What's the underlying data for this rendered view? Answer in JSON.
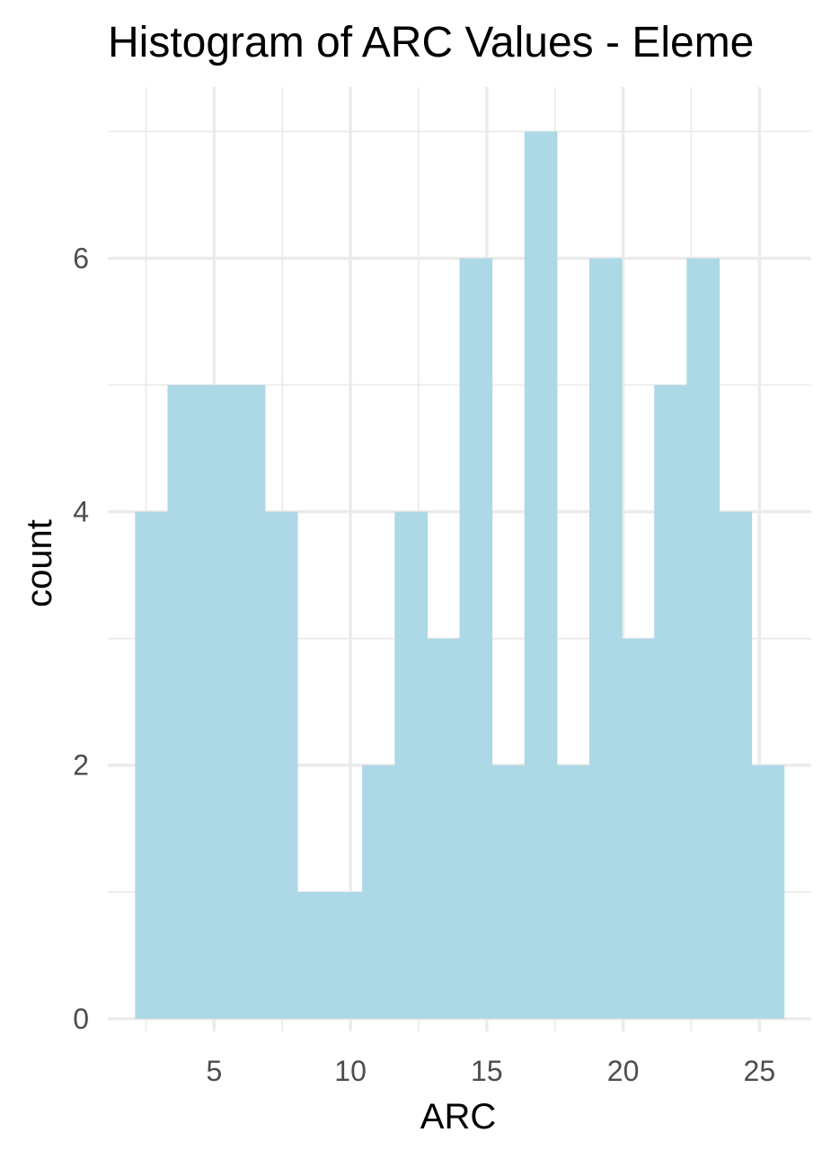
{
  "chart_data": {
    "type": "bar",
    "title": "Histogram of ARC Values - Eleme",
    "xlabel": "ARC",
    "ylabel": "count",
    "fill_color": "#add8e6",
    "grid": true,
    "bin_width": 1.19,
    "bins": [
      {
        "start": 2.1,
        "end": 3.29,
        "count": 4
      },
      {
        "start": 3.29,
        "end": 4.48,
        "count": 5
      },
      {
        "start": 4.48,
        "end": 5.67,
        "count": 5
      },
      {
        "start": 5.67,
        "end": 6.86,
        "count": 5
      },
      {
        "start": 6.86,
        "end": 8.05,
        "count": 4
      },
      {
        "start": 8.05,
        "end": 9.24,
        "count": 1
      },
      {
        "start": 9.24,
        "end": 10.43,
        "count": 1
      },
      {
        "start": 10.43,
        "end": 11.62,
        "count": 2
      },
      {
        "start": 11.62,
        "end": 12.81,
        "count": 4
      },
      {
        "start": 12.81,
        "end": 14.0,
        "count": 3
      },
      {
        "start": 14.0,
        "end": 15.19,
        "count": 6
      },
      {
        "start": 15.19,
        "end": 16.38,
        "count": 2
      },
      {
        "start": 16.38,
        "end": 17.57,
        "count": 7
      },
      {
        "start": 17.57,
        "end": 18.76,
        "count": 2
      },
      {
        "start": 18.76,
        "end": 19.95,
        "count": 6
      },
      {
        "start": 19.95,
        "end": 21.14,
        "count": 3
      },
      {
        "start": 21.14,
        "end": 22.33,
        "count": 5
      },
      {
        "start": 22.33,
        "end": 23.52,
        "count": 6
      },
      {
        "start": 23.52,
        "end": 24.71,
        "count": 4
      },
      {
        "start": 24.71,
        "end": 25.9,
        "count": 2
      }
    ],
    "xlim": [
      1.1,
      26.9
    ],
    "ylim": [
      -0.1,
      7.35
    ],
    "x_ticks": [
      5,
      10,
      15,
      20,
      25
    ],
    "x_tick_labels": [
      "5",
      "10",
      "15",
      "20",
      "25"
    ],
    "y_ticks": [
      0,
      2,
      4,
      6
    ],
    "y_tick_labels": [
      "0",
      "2",
      "4",
      "6"
    ]
  }
}
